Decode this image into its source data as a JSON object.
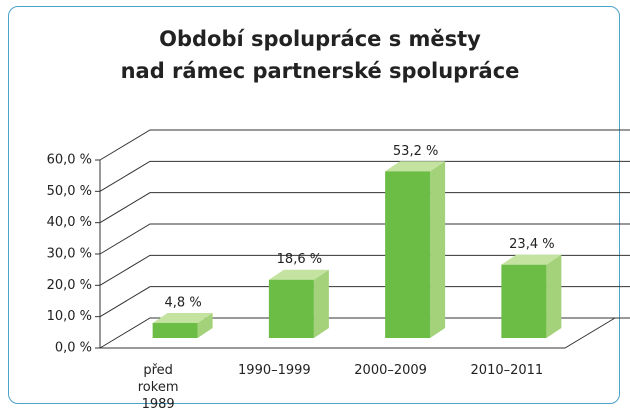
{
  "chart_data": {
    "type": "bar3d",
    "title": [
      "Období spolupráce s městy",
      "nad rámec partnerské spolupráce"
    ],
    "categories": [
      "před rokem 1989",
      "1990–1999",
      "2000–2009",
      "2010–2011"
    ],
    "values": [
      4.8,
      18.6,
      53.2,
      23.4
    ],
    "value_labels": [
      "4,8  %",
      "18,6 %",
      "53,2 %",
      "23,4 %"
    ],
    "color": "#6cbd45",
    "ylim": [
      0,
      60
    ],
    "yticks": [
      {
        "value": 0,
        "label": "0,0 %"
      },
      {
        "value": 10,
        "label": "10,0 %"
      },
      {
        "value": 20,
        "label": "20,0 %"
      },
      {
        "value": 30,
        "label": "30,0 %"
      },
      {
        "value": 40,
        "label": "40,0 %"
      },
      {
        "value": 50,
        "label": "50,0 %"
      },
      {
        "value": 60,
        "label": "60,0 %"
      }
    ],
    "grid": true
  }
}
